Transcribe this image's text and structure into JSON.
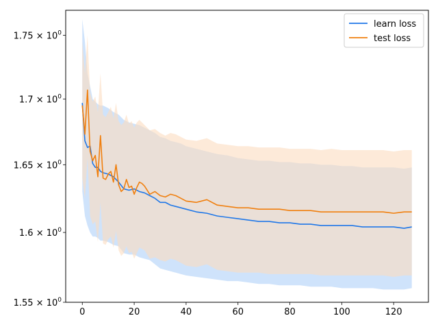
{
  "chart_data": {
    "type": "line",
    "title": "",
    "xlabel": "",
    "ylabel": "",
    "xlim": [
      -6.4,
      133.4
    ],
    "ylim": [
      1.55,
      1.77
    ],
    "y_scale": "log",
    "grid": false,
    "legend_position": "top-right",
    "x_ticks": [
      0,
      20,
      40,
      60,
      80,
      100,
      120
    ],
    "x_tick_labels": [
      "0",
      "20",
      "40",
      "60",
      "80",
      "100",
      "120"
    ],
    "y_ticks": [
      1.55,
      1.6,
      1.65,
      1.7,
      1.75
    ],
    "y_tick_labels": [
      "1.55",
      "1.6",
      "1.65",
      "1.7",
      "1.75"
    ],
    "y_tick_exponent": "0",
    "y_tick_base": "10",
    "series": [
      {
        "name": "learn loss",
        "color": "#1f77e8",
        "band_color": "#cfe3fb",
        "x": [
          0,
          1,
          2,
          3,
          4,
          5,
          6,
          7,
          8,
          10,
          12,
          14,
          16,
          18,
          20,
          22,
          24,
          26,
          28,
          30,
          32,
          34,
          36,
          38,
          40,
          44,
          48,
          52,
          56,
          60,
          64,
          68,
          72,
          76,
          80,
          84,
          88,
          92,
          96,
          100,
          104,
          108,
          112,
          116,
          120,
          124,
          127
        ],
        "mean": [
          1.697,
          1.668,
          1.663,
          1.664,
          1.651,
          1.648,
          1.648,
          1.645,
          1.644,
          1.643,
          1.641,
          1.637,
          1.632,
          1.631,
          1.632,
          1.63,
          1.629,
          1.627,
          1.625,
          1.622,
          1.622,
          1.62,
          1.619,
          1.618,
          1.617,
          1.615,
          1.614,
          1.612,
          1.611,
          1.61,
          1.609,
          1.608,
          1.608,
          1.607,
          1.607,
          1.606,
          1.606,
          1.605,
          1.605,
          1.605,
          1.605,
          1.604,
          1.604,
          1.604,
          1.604,
          1.603,
          1.604
        ],
        "upper": [
          1.763,
          1.745,
          1.72,
          1.71,
          1.7,
          1.698,
          1.696,
          1.695,
          1.695,
          1.693,
          1.69,
          1.688,
          1.684,
          1.682,
          1.681,
          1.68,
          1.678,
          1.676,
          1.674,
          1.671,
          1.67,
          1.668,
          1.667,
          1.666,
          1.664,
          1.662,
          1.66,
          1.658,
          1.657,
          1.655,
          1.654,
          1.653,
          1.653,
          1.652,
          1.652,
          1.651,
          1.651,
          1.65,
          1.65,
          1.649,
          1.649,
          1.648,
          1.648,
          1.648,
          1.648,
          1.647,
          1.648
        ],
        "lower": [
          1.63,
          1.612,
          1.605,
          1.6,
          1.597,
          1.597,
          1.596,
          1.594,
          1.594,
          1.593,
          1.591,
          1.59,
          1.585,
          1.584,
          1.584,
          1.582,
          1.581,
          1.58,
          1.577,
          1.574,
          1.573,
          1.572,
          1.571,
          1.57,
          1.569,
          1.568,
          1.567,
          1.566,
          1.565,
          1.565,
          1.564,
          1.563,
          1.563,
          1.562,
          1.562,
          1.562,
          1.561,
          1.561,
          1.561,
          1.56,
          1.56,
          1.56,
          1.56,
          1.559,
          1.559,
          1.559,
          1.56
        ]
      },
      {
        "name": "test loss",
        "color": "#f07f0e",
        "band_color": "#fcdcc0",
        "x": [
          0,
          1,
          2,
          3,
          4,
          5,
          6,
          7,
          8,
          9,
          10,
          11,
          12,
          13,
          14,
          15,
          16,
          17,
          18,
          19,
          20,
          21,
          22,
          23,
          24,
          26,
          28,
          30,
          32,
          34,
          36,
          38,
          40,
          44,
          48,
          52,
          56,
          60,
          64,
          68,
          72,
          76,
          80,
          84,
          88,
          92,
          96,
          100,
          104,
          108,
          112,
          116,
          120,
          124,
          127
        ],
        "mean": [
          1.695,
          1.673,
          1.707,
          1.66,
          1.653,
          1.657,
          1.641,
          1.672,
          1.64,
          1.639,
          1.643,
          1.645,
          1.637,
          1.65,
          1.635,
          1.63,
          1.632,
          1.639,
          1.633,
          1.634,
          1.628,
          1.633,
          1.637,
          1.636,
          1.634,
          1.628,
          1.63,
          1.627,
          1.626,
          1.628,
          1.627,
          1.625,
          1.623,
          1.622,
          1.624,
          1.62,
          1.619,
          1.618,
          1.618,
          1.617,
          1.617,
          1.617,
          1.616,
          1.616,
          1.616,
          1.615,
          1.615,
          1.615,
          1.615,
          1.615,
          1.615,
          1.615,
          1.614,
          1.615,
          1.615
        ],
        "upper": [
          1.745,
          1.72,
          1.75,
          1.705,
          1.698,
          1.702,
          1.69,
          1.72,
          1.688,
          1.686,
          1.69,
          1.694,
          1.685,
          1.697,
          1.683,
          1.68,
          1.682,
          1.688,
          1.681,
          1.683,
          1.678,
          1.682,
          1.684,
          1.682,
          1.68,
          1.676,
          1.677,
          1.674,
          1.672,
          1.674,
          1.673,
          1.671,
          1.669,
          1.668,
          1.67,
          1.666,
          1.665,
          1.664,
          1.664,
          1.663,
          1.663,
          1.663,
          1.662,
          1.662,
          1.662,
          1.661,
          1.662,
          1.661,
          1.661,
          1.661,
          1.661,
          1.661,
          1.66,
          1.661,
          1.661
        ],
        "lower": [
          1.64,
          1.625,
          1.655,
          1.612,
          1.606,
          1.608,
          1.593,
          1.622,
          1.592,
          1.591,
          1.595,
          1.597,
          1.589,
          1.601,
          1.587,
          1.583,
          1.585,
          1.59,
          1.585,
          1.586,
          1.581,
          1.585,
          1.589,
          1.588,
          1.587,
          1.581,
          1.582,
          1.58,
          1.579,
          1.581,
          1.58,
          1.578,
          1.576,
          1.575,
          1.577,
          1.573,
          1.572,
          1.571,
          1.571,
          1.571,
          1.57,
          1.57,
          1.57,
          1.57,
          1.57,
          1.569,
          1.569,
          1.569,
          1.569,
          1.569,
          1.569,
          1.569,
          1.568,
          1.569,
          1.569
        ]
      }
    ]
  }
}
